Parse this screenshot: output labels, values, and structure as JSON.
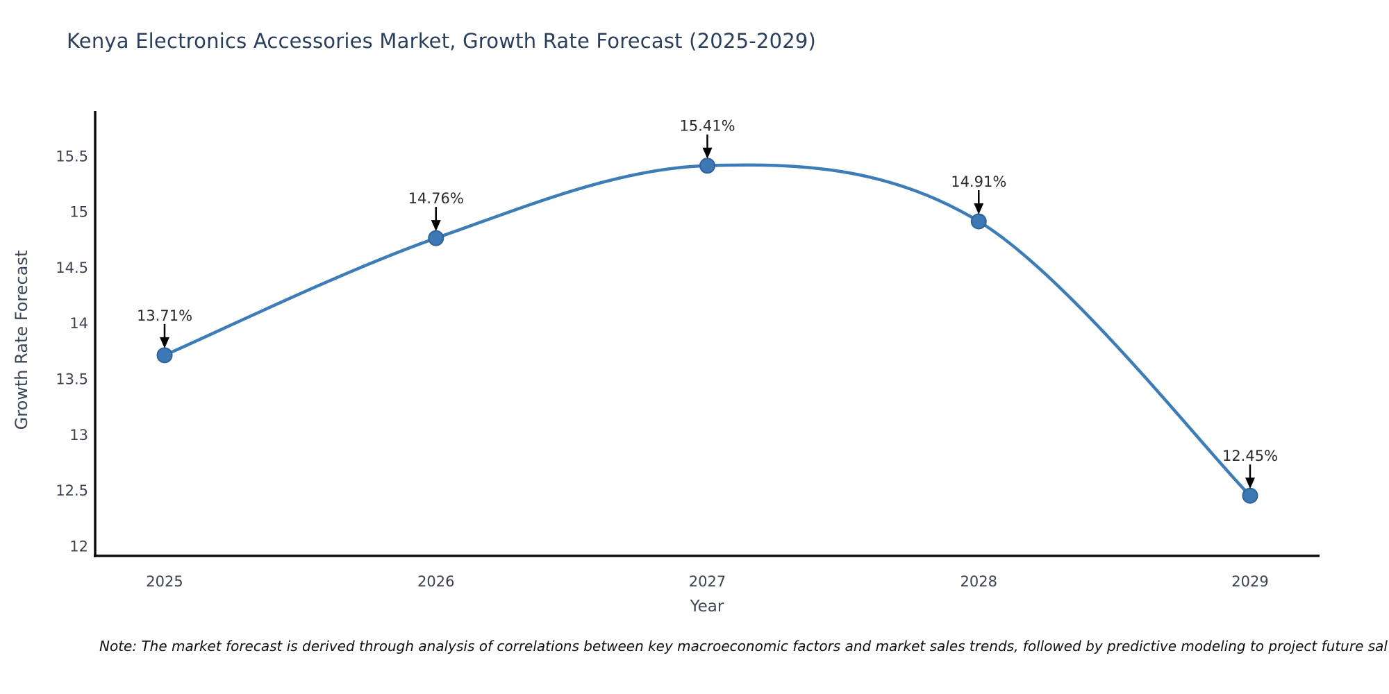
{
  "header": {
    "title": "Kenya Electronics Accessories Market, Growth Rate Forecast (2025-2029)"
  },
  "note": {
    "text": "Note: The market forecast is derived through analysis of correlations between key macroeconomic factors and market sales trends, followed by predictive modeling to project future sal"
  },
  "chart_data": {
    "type": "line",
    "title": "Kenya Electronics Accessories Market, Growth Rate Forecast (2025-2029)",
    "xlabel": "Year",
    "ylabel": "Growth Rate Forecast",
    "categories": [
      "2025",
      "2026",
      "2027",
      "2028",
      "2029"
    ],
    "values": [
      13.71,
      14.76,
      15.41,
      14.91,
      12.45
    ],
    "point_labels": [
      "13.71%",
      "14.76%",
      "15.41%",
      "14.91%",
      "12.45%"
    ],
    "yticks": [
      12,
      12.5,
      13,
      13.5,
      14,
      14.5,
      15,
      15.5
    ],
    "ytick_labels": [
      "12",
      "12.5",
      "13",
      "13.5",
      "14",
      "14.5",
      "15",
      "15.5"
    ],
    "ylim": [
      11.91,
      15.9
    ],
    "grid": false,
    "legend": null,
    "smooth": true,
    "marker_style": "circle",
    "annotations_have_arrows": true,
    "colors": {
      "line": "#3c7db8",
      "marker_fill": "#3b78b4",
      "marker_edge": "#2f6398",
      "arrow": "#000000",
      "axis_spine": "#0d0d0d",
      "tick_label": "#3b4150",
      "annotation_text": "#2a2a2a",
      "title_text": "#2b3f5c"
    }
  }
}
